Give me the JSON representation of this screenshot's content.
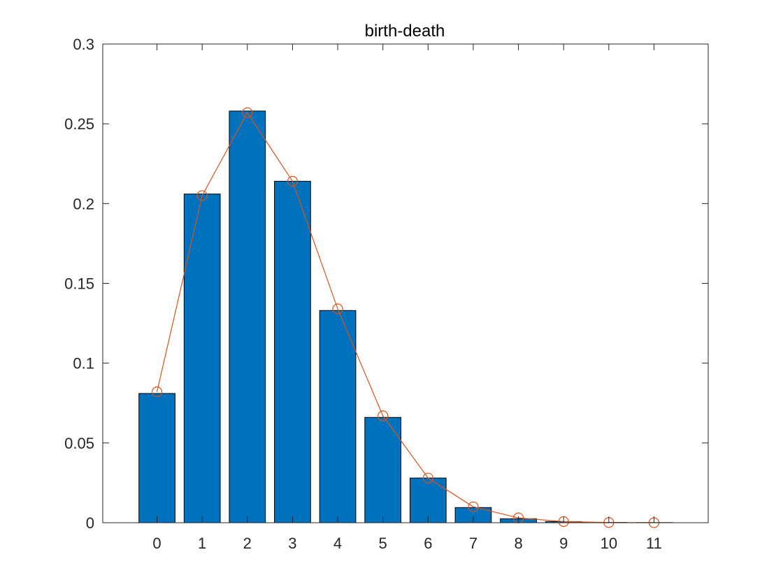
{
  "chart_data": {
    "type": "bar",
    "title": "birth-death",
    "xlabel": "",
    "ylabel": "",
    "categories": [
      "0",
      "1",
      "2",
      "3",
      "4",
      "5",
      "6",
      "7",
      "8",
      "9",
      "10",
      "11"
    ],
    "x": [
      0,
      1,
      2,
      3,
      4,
      5,
      6,
      7,
      8,
      9,
      10,
      11
    ],
    "xlim": [
      -1.2,
      12.2
    ],
    "ylim": [
      0,
      0.3
    ],
    "yticks": [
      0,
      0.05,
      0.1,
      0.15,
      0.2,
      0.25,
      0.3
    ],
    "ytick_labels": [
      "0",
      "0.05",
      "0.1",
      "0.15",
      "0.2",
      "0.25",
      "0.3"
    ],
    "grid": false,
    "box": true,
    "series": [
      {
        "kind": "bar",
        "values": [
          0.081,
          0.206,
          0.258,
          0.214,
          0.133,
          0.066,
          0.028,
          0.0095,
          0.0025,
          0.0007,
          0.0002,
          0.0001
        ],
        "color": "#0072BD",
        "edge_color": "#000000"
      },
      {
        "kind": "line",
        "marker": "circle",
        "values": [
          0.082,
          0.205,
          0.257,
          0.214,
          0.134,
          0.067,
          0.028,
          0.01,
          0.003,
          0.0007,
          0.0001,
          0.0
        ],
        "color": "#D95319"
      }
    ]
  }
}
